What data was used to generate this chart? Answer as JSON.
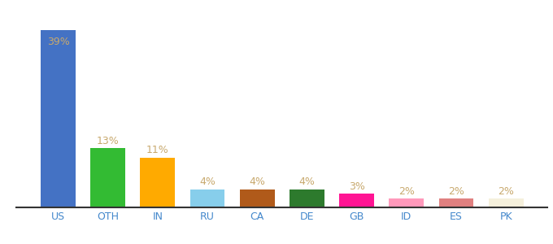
{
  "categories": [
    "US",
    "OTH",
    "IN",
    "RU",
    "CA",
    "DE",
    "GB",
    "ID",
    "ES",
    "PK"
  ],
  "values": [
    39,
    13,
    11,
    4,
    4,
    4,
    3,
    2,
    2,
    2
  ],
  "bar_colors": [
    "#4472c4",
    "#33bb33",
    "#ffaa00",
    "#87ceeb",
    "#b05a1a",
    "#2d7a2d",
    "#ff1493",
    "#ff99bb",
    "#e08080",
    "#f5f0dc"
  ],
  "labels": [
    "39%",
    "13%",
    "11%",
    "4%",
    "4%",
    "4%",
    "3%",
    "2%",
    "2%",
    "2%"
  ],
  "label_color": "#c8a96e",
  "background_color": "#ffffff",
  "ylim": [
    0,
    44
  ],
  "bar_width": 0.7,
  "figsize": [
    6.8,
    3.0
  ],
  "dpi": 100
}
